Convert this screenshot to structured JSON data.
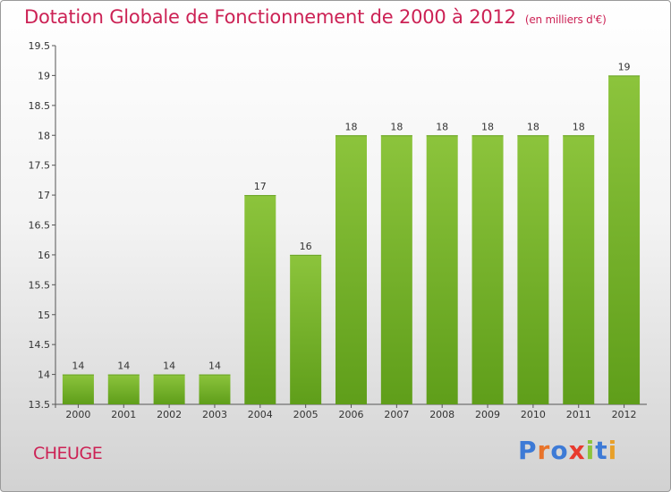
{
  "chart_data": {
    "type": "bar",
    "title": "Dotation Globale de Fonctionnement de 2000 à 2012",
    "unit": "(en milliers d'€)",
    "categories": [
      "2000",
      "2001",
      "2002",
      "2003",
      "2004",
      "2005",
      "2006",
      "2007",
      "2008",
      "2009",
      "2010",
      "2011",
      "2012"
    ],
    "values": [
      14,
      14,
      14,
      14,
      17,
      16,
      18,
      18,
      18,
      18,
      18,
      18,
      19
    ],
    "value_labels": [
      "14",
      "14",
      "14",
      "14",
      "17",
      "16",
      "18",
      "18",
      "18",
      "18",
      "18",
      "18",
      "19"
    ],
    "ylim": [
      13.5,
      19.5
    ],
    "yticks": [
      "13.5",
      "14",
      "14.5",
      "15",
      "15.5",
      "16",
      "16.5",
      "17",
      "17.5",
      "18",
      "18.5",
      "19",
      "19.5"
    ],
    "grid": false,
    "bar_color": "#8cc43c",
    "bar_color_dark": "#5f9e1a"
  },
  "commune": "CHEUGE",
  "logo": {
    "letters": [
      "P",
      "r",
      "o",
      "x",
      "i",
      "t",
      "i"
    ],
    "colors": [
      "#3d7ad6",
      "#e8732a",
      "#3d7ad6",
      "#e83a2e",
      "#8cc43c",
      "#3d7ad6",
      "#e8a02a"
    ]
  },
  "colors": {
    "title": "#cc2255",
    "axis": "#555555"
  }
}
